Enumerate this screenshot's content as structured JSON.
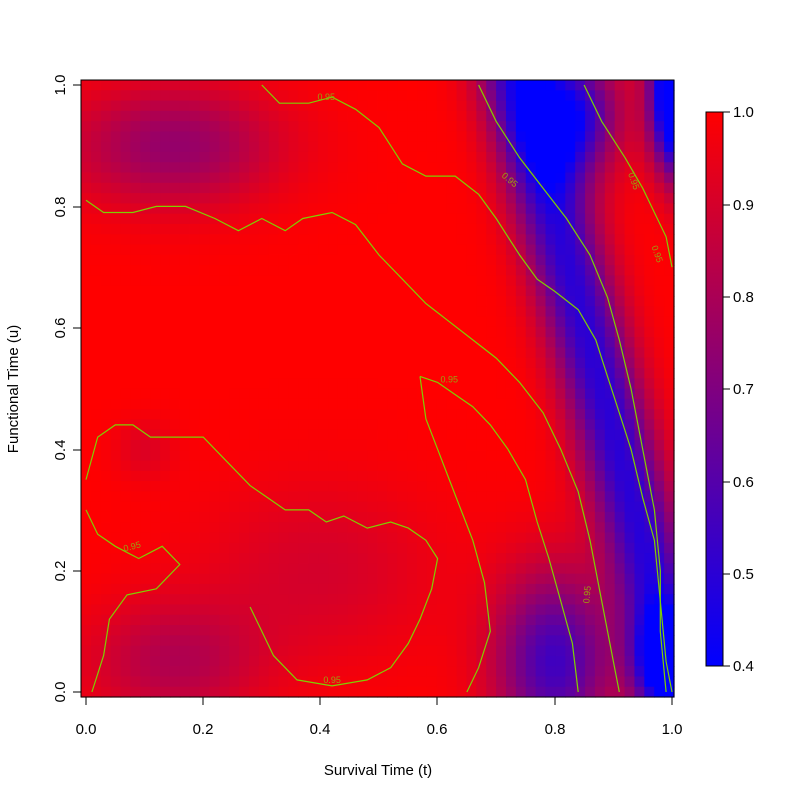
{
  "chart_data": {
    "type": "heatmap",
    "title": "",
    "xlabel": "Survival Time (t)",
    "ylabel": "Functional Time (u)",
    "xlim": [
      0.0,
      1.0
    ],
    "ylim": [
      0.0,
      1.0
    ],
    "x_ticks": [
      "0.0",
      "0.2",
      "0.4",
      "0.6",
      "0.8",
      "1.0"
    ],
    "y_ticks": [
      "0.0",
      "0.2",
      "0.4",
      "0.6",
      "0.8",
      "1.0"
    ],
    "colorbar": {
      "min": 0.4,
      "max": 1.0,
      "low_color": "#0000ff",
      "high_color": "#ff0000",
      "ticks": [
        "0.4",
        "0.5",
        "0.6",
        "0.7",
        "0.8",
        "0.9",
        "1.0"
      ]
    },
    "contour": {
      "level": 0.95,
      "label": "0.95",
      "color": "#7fd000"
    },
    "grid": false,
    "legend": "right colorbar"
  }
}
